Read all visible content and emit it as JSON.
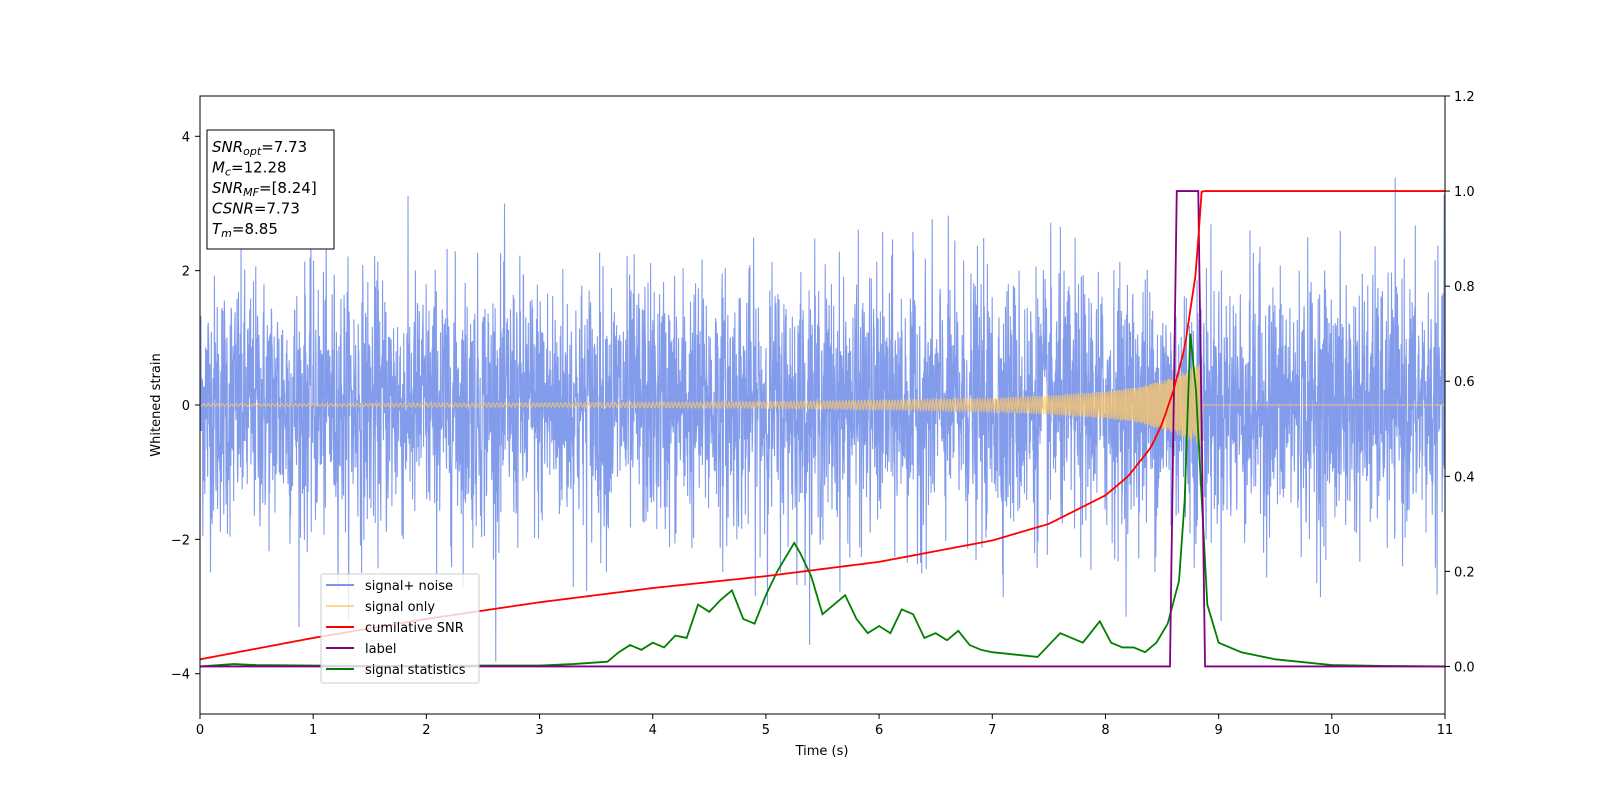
{
  "chart_data": {
    "type": "line",
    "xlabel": "Time (s)",
    "ylabel": "Whitened strain",
    "xlim": [
      0,
      11
    ],
    "ylim_left": [
      -4.6,
      4.6
    ],
    "ylim_right": [
      -0.1,
      1.2
    ],
    "xticks": [
      0,
      1,
      2,
      3,
      4,
      5,
      6,
      7,
      8,
      9,
      10,
      11
    ],
    "yticks_left": [
      -4,
      -2,
      0,
      2,
      4
    ],
    "yticks_right": [
      0.0,
      0.2,
      0.4,
      0.6,
      0.8,
      1.0,
      1.2
    ],
    "xtick_labels": [
      "0",
      "1",
      "2",
      "3",
      "4",
      "5",
      "6",
      "7",
      "8",
      "9",
      "10",
      "11"
    ],
    "ytick_labels_left": [
      "−4",
      "−2",
      "0",
      "2",
      "4"
    ],
    "ytick_labels_right": [
      "0.0",
      "0.2",
      "0.4",
      "0.6",
      "0.8",
      "1.0",
      "1.2"
    ],
    "legend_position": "lower-left",
    "stats_box": [
      {
        "sym": "SNR",
        "sub": "opt",
        "val": "=7.73"
      },
      {
        "sym": "M",
        "sub": "c",
        "val": "=12.28"
      },
      {
        "sym": "SNR",
        "sub": "MF",
        "val": "=[8.24]"
      },
      {
        "sym": "CSNR",
        "sub": "",
        "val": "=7.73"
      },
      {
        "sym": "T",
        "sub": "m",
        "val": "=8.85"
      }
    ],
    "series": [
      {
        "name": "signal+ noise",
        "axis": "left",
        "color": "#7b96ea",
        "kind": "noise",
        "amplitude_range": [
          -4.1,
          4.15
        ],
        "typical_band": [
          -1.8,
          1.8
        ],
        "merger_time": 8.85
      },
      {
        "name": "signal only",
        "axis": "left",
        "color": "#ffc864",
        "kind": "chirp",
        "envelope": {
          "x": [
            0,
            1,
            2,
            3,
            4,
            5,
            6,
            7,
            7.5,
            8,
            8.3,
            8.5,
            8.65,
            8.75,
            8.85,
            8.86,
            11
          ],
          "y": [
            0.02,
            0.02,
            0.03,
            0.03,
            0.04,
            0.05,
            0.07,
            0.1,
            0.14,
            0.2,
            0.27,
            0.36,
            0.45,
            0.55,
            0.62,
            0,
            0
          ]
        },
        "merger_time": 8.85
      },
      {
        "name": "cumilative SNR",
        "axis": "right",
        "color": "#ff0000",
        "x": [
          0,
          1,
          2,
          3,
          4,
          5,
          6,
          7,
          7.5,
          8,
          8.2,
          8.4,
          8.5,
          8.6,
          8.7,
          8.8,
          8.85,
          11
        ],
        "y": [
          0.015,
          0.06,
          0.1,
          0.135,
          0.165,
          0.19,
          0.22,
          0.265,
          0.3,
          0.36,
          0.4,
          0.46,
          0.51,
          0.58,
          0.67,
          0.83,
          1.0,
          1.0
        ]
      },
      {
        "name": "label",
        "axis": "right",
        "color": "#800080",
        "x": [
          0,
          8.57,
          8.63,
          8.82,
          8.88,
          11
        ],
        "y": [
          0,
          0,
          1.0,
          1.0,
          0,
          0
        ]
      },
      {
        "name": "signal statistics",
        "axis": "right",
        "color": "#008000",
        "x": [
          0,
          0.3,
          0.5,
          1.0,
          1.5,
          2.0,
          2.5,
          3.0,
          3.3,
          3.6,
          3.7,
          3.8,
          3.9,
          4.0,
          4.1,
          4.2,
          4.3,
          4.4,
          4.5,
          4.6,
          4.7,
          4.8,
          4.9,
          5.0,
          5.1,
          5.2,
          5.25,
          5.3,
          5.4,
          5.5,
          5.6,
          5.7,
          5.8,
          5.9,
          6.0,
          6.1,
          6.2,
          6.3,
          6.4,
          6.5,
          6.6,
          6.7,
          6.8,
          6.9,
          7.0,
          7.2,
          7.4,
          7.6,
          7.8,
          7.95,
          8.05,
          8.15,
          8.25,
          8.35,
          8.45,
          8.55,
          8.65,
          8.7,
          8.75,
          8.8,
          8.9,
          9.0,
          9.2,
          9.5,
          10.0,
          10.5,
          11.0
        ],
        "y": [
          0.0,
          0.005,
          0.003,
          0.002,
          0.001,
          0.001,
          0.002,
          0.002,
          0.005,
          0.01,
          0.03,
          0.045,
          0.035,
          0.05,
          0.04,
          0.065,
          0.06,
          0.13,
          0.115,
          0.14,
          0.16,
          0.1,
          0.09,
          0.15,
          0.2,
          0.24,
          0.26,
          0.24,
          0.19,
          0.11,
          0.13,
          0.15,
          0.1,
          0.07,
          0.085,
          0.07,
          0.12,
          0.11,
          0.06,
          0.07,
          0.055,
          0.075,
          0.045,
          0.035,
          0.03,
          0.025,
          0.02,
          0.07,
          0.05,
          0.095,
          0.05,
          0.04,
          0.04,
          0.03,
          0.05,
          0.09,
          0.18,
          0.35,
          0.7,
          0.58,
          0.13,
          0.05,
          0.03,
          0.015,
          0.003,
          0.001,
          0.0
        ]
      }
    ]
  }
}
